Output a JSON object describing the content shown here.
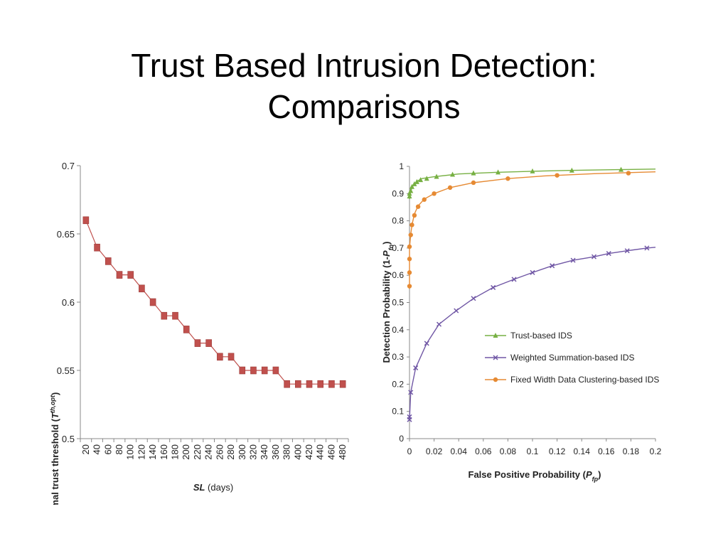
{
  "slide": {
    "title_line1": "Trust Based Intrusion Detection:",
    "title_line2": "Comparisons"
  },
  "chart_data": [
    {
      "type": "line",
      "x": [
        20,
        40,
        60,
        80,
        100,
        120,
        140,
        160,
        180,
        200,
        220,
        240,
        260,
        280,
        300,
        320,
        340,
        360,
        380,
        400,
        420,
        440,
        460,
        480
      ],
      "series": [
        {
          "name": "",
          "color": "#c0504d",
          "marker": "square",
          "values": [
            0.66,
            0.64,
            0.63,
            0.62,
            0.62,
            0.61,
            0.6,
            0.59,
            0.59,
            0.58,
            0.57,
            0.57,
            0.56,
            0.56,
            0.55,
            0.55,
            0.55,
            0.55,
            0.54,
            0.54,
            0.54,
            0.54,
            0.54,
            0.54
          ]
        }
      ],
      "xlabel_prefix": "SL",
      "xlabel_suffix": " (days)",
      "ylabel_prefix": "optimal trust threshold (",
      "ylabel_symbol": "T",
      "ylabel_super": "th,opt",
      "ylabel_suffix": ")",
      "xticks": [
        "20",
        "40",
        "60",
        "80",
        "100",
        "120",
        "140",
        "160",
        "180",
        "200",
        "220",
        "240",
        "260",
        "280",
        "300",
        "320",
        "340",
        "360",
        "380",
        "400",
        "420",
        "440",
        "460",
        "480"
      ],
      "yticks": [
        "0.5",
        "0.55",
        "0.6",
        "0.65",
        "0.7"
      ],
      "ytick_values": [
        0.5,
        0.55,
        0.6,
        0.65,
        0.7
      ],
      "ylim": [
        0.5,
        0.7
      ],
      "grid": false
    },
    {
      "type": "line",
      "xlim": [
        0,
        0.2
      ],
      "ylim": [
        0,
        1
      ],
      "xlabel_main": "False Positive Probability (",
      "xlabel_symbol": "P",
      "xlabel_sub": "fp",
      "xlabel_end": ")",
      "ylabel_main": "Detection Probability (1-",
      "ylabel_symbol": "P",
      "ylabel_sub": "fn",
      "ylabel_end": ")",
      "xticks": [
        "0",
        "0.02",
        "0.04",
        "0.06",
        "0.08",
        "0.1",
        "0.12",
        "0.14",
        "0.16",
        "0.18",
        "0.2"
      ],
      "xtick_values": [
        0,
        0.02,
        0.04,
        0.06,
        0.08,
        0.1,
        0.12,
        0.14,
        0.16,
        0.18,
        0.2
      ],
      "yticks": [
        "0",
        "0.1",
        "0.2",
        "0.3",
        "0.4",
        "0.5",
        "0.6",
        "0.7",
        "0.8",
        "0.9",
        "1"
      ],
      "ytick_values": [
        0,
        0.1,
        0.2,
        0.3,
        0.4,
        0.5,
        0.6,
        0.7,
        0.8,
        0.9,
        1
      ],
      "legend_position": "center-right",
      "grid": false,
      "series": [
        {
          "name": "Trust-based IDS",
          "color": "#77b043",
          "marker": "triangle",
          "line": [
            [
              0,
              0.88
            ],
            [
              0.001,
              0.91
            ],
            [
              0.003,
              0.93
            ],
            [
              0.006,
              0.945
            ],
            [
              0.01,
              0.955
            ],
            [
              0.02,
              0.962
            ],
            [
              0.04,
              0.972
            ],
            [
              0.07,
              0.978
            ],
            [
              0.1,
              0.982
            ],
            [
              0.13,
              0.985
            ],
            [
              0.17,
              0.988
            ],
            [
              0.2,
              0.99
            ]
          ],
          "markers": [
            [
              0,
              0.89
            ],
            [
              0,
              0.9
            ],
            [
              0.001,
              0.91
            ],
            [
              0.002,
              0.925
            ],
            [
              0.004,
              0.935
            ],
            [
              0.006,
              0.943
            ],
            [
              0.009,
              0.95
            ],
            [
              0.014,
              0.955
            ],
            [
              0.022,
              0.962
            ],
            [
              0.035,
              0.97
            ],
            [
              0.052,
              0.975
            ],
            [
              0.072,
              0.978
            ],
            [
              0.1,
              0.982
            ],
            [
              0.132,
              0.985
            ],
            [
              0.172,
              0.988
            ]
          ]
        },
        {
          "name": "Weighted Summation-based IDS",
          "color": "#7057a5",
          "marker": "x",
          "line": [
            [
              0,
              0.07
            ],
            [
              0.001,
              0.17
            ],
            [
              0.005,
              0.26
            ],
            [
              0.014,
              0.35
            ],
            [
              0.024,
              0.42
            ],
            [
              0.038,
              0.47
            ],
            [
              0.052,
              0.515
            ],
            [
              0.068,
              0.555
            ],
            [
              0.085,
              0.585
            ],
            [
              0.1,
              0.61
            ],
            [
              0.116,
              0.635
            ],
            [
              0.133,
              0.655
            ],
            [
              0.15,
              0.668
            ],
            [
              0.162,
              0.68
            ],
            [
              0.177,
              0.69
            ],
            [
              0.193,
              0.7
            ],
            [
              0.2,
              0.703
            ]
          ],
          "markers": [
            [
              0,
              0.07
            ],
            [
              0,
              0.08
            ],
            [
              0.001,
              0.17
            ],
            [
              0.005,
              0.26
            ],
            [
              0.014,
              0.35
            ],
            [
              0.024,
              0.42
            ],
            [
              0.038,
              0.47
            ],
            [
              0.052,
              0.515
            ],
            [
              0.068,
              0.555
            ],
            [
              0.085,
              0.585
            ],
            [
              0.1,
              0.61
            ],
            [
              0.116,
              0.635
            ],
            [
              0.133,
              0.655
            ],
            [
              0.15,
              0.668
            ],
            [
              0.162,
              0.68
            ],
            [
              0.177,
              0.69
            ],
            [
              0.193,
              0.7
            ]
          ]
        },
        {
          "name": "Fixed Width Data Clustering-based IDS",
          "color": "#e68a33",
          "marker": "circle",
          "line": [
            [
              0,
              0.55
            ],
            [
              0,
              0.6
            ],
            [
              0,
              0.66
            ],
            [
              0,
              0.7
            ],
            [
              0.001,
              0.75
            ],
            [
              0.002,
              0.785
            ],
            [
              0.004,
              0.825
            ],
            [
              0.007,
              0.855
            ],
            [
              0.012,
              0.88
            ],
            [
              0.02,
              0.9
            ],
            [
              0.033,
              0.922
            ],
            [
              0.052,
              0.94
            ],
            [
              0.08,
              0.955
            ],
            [
              0.11,
              0.965
            ],
            [
              0.15,
              0.973
            ],
            [
              0.2,
              0.98
            ]
          ],
          "markers": [
            [
              0,
              0.56
            ],
            [
              0,
              0.61
            ],
            [
              0,
              0.66
            ],
            [
              0,
              0.705
            ],
            [
              0.001,
              0.748
            ],
            [
              0.002,
              0.785
            ],
            [
              0.004,
              0.82
            ],
            [
              0.007,
              0.852
            ],
            [
              0.012,
              0.878
            ],
            [
              0.02,
              0.9
            ],
            [
              0.033,
              0.922
            ],
            [
              0.052,
              0.94
            ],
            [
              0.08,
              0.955
            ],
            [
              0.12,
              0.967
            ],
            [
              0.178,
              0.975
            ]
          ]
        }
      ]
    }
  ]
}
